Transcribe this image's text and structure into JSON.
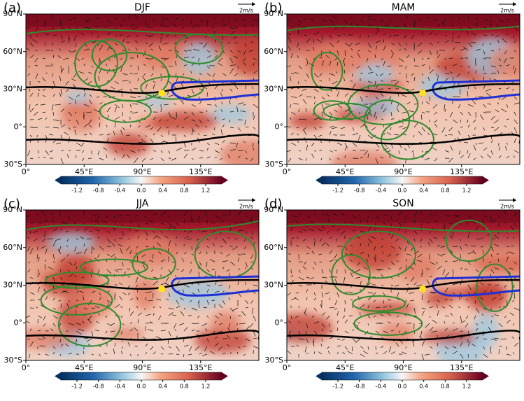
{
  "panels": [
    {
      "label": "(a)",
      "title": "DJF"
    },
    {
      "label": "(b)",
      "title": "MAM"
    },
    {
      "label": "(c)",
      "title": "JJA"
    },
    {
      "label": "(d)",
      "title": "SON"
    }
  ],
  "vector_key": "2m/s",
  "xlim": [
    0,
    180
  ],
  "xticks": [
    {
      "value": 0,
      "label": "0°"
    },
    {
      "value": 45,
      "label": "45°E"
    },
    {
      "value": 90,
      "label": "90°E"
    },
    {
      "value": 135,
      "label": "135°E"
    }
  ],
  "ylim": [
    -30,
    90
  ],
  "yticks": [
    {
      "value": 90,
      "label": "90°N"
    },
    {
      "value": 60,
      "label": "60°N"
    },
    {
      "value": 30,
      "label": "30°N"
    },
    {
      "value": 0,
      "label": "0°"
    },
    {
      "value": -30,
      "label": "30°S"
    }
  ],
  "clim": [
    -1.5,
    1.5
  ],
  "cticks": [
    -1.2,
    -0.8,
    -0.4,
    {
      "value": 0,
      "label": "0.0"
    },
    0.4,
    0.8,
    1.2
  ]
}
